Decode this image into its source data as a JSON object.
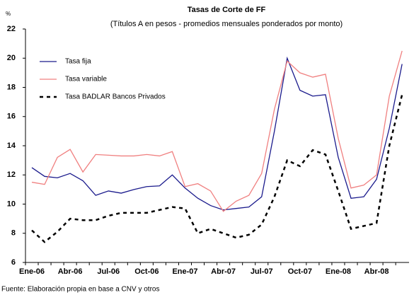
{
  "chart_data": {
    "type": "line",
    "title": "Tasas de Corte de FF",
    "subtitle": "(Títulos A en pesos - promedios mensuales ponderados por monto)",
    "y_unit": "%",
    "source": "Fuente: Elaboración propia en base a CNV y otros",
    "categories": [
      "Ene-06",
      null,
      null,
      "Abr-06",
      null,
      null,
      "Jul-06",
      null,
      null,
      "Oct-06",
      null,
      null,
      "Ene-07",
      null,
      null,
      "Abr-07",
      null,
      null,
      "Jul-07",
      null,
      null,
      "Oct-07",
      null,
      null,
      "Ene-08",
      null,
      null,
      "Abr-08",
      null,
      null
    ],
    "series": [
      {
        "name": "Tasa fija",
        "color": "#1a1a8c",
        "dash": false,
        "values": [
          12.5,
          11.9,
          11.8,
          12.1,
          11.6,
          10.6,
          10.9,
          10.75,
          11.0,
          11.2,
          11.25,
          12.0,
          11.1,
          10.4,
          9.9,
          9.6,
          9.7,
          9.8,
          10.5,
          15.0,
          20.0,
          17.8,
          17.4,
          17.5,
          13.2,
          10.4,
          10.5,
          11.7,
          15.2,
          19.6
        ]
      },
      {
        "name": "Tasa variable",
        "color": "#f08080",
        "dash": false,
        "values": [
          11.5,
          11.35,
          13.2,
          13.75,
          12.2,
          13.4,
          13.35,
          13.3,
          13.3,
          13.4,
          13.3,
          13.6,
          11.2,
          11.4,
          10.9,
          9.5,
          10.2,
          10.6,
          12.1,
          16.5,
          19.8,
          19.0,
          18.7,
          18.9,
          14.5,
          11.1,
          11.3,
          12.0,
          17.4,
          20.5
        ]
      },
      {
        "name": "Tasa BADLAR Bancos Privados",
        "color": "#000000",
        "dash": true,
        "values": [
          8.2,
          7.4,
          8.1,
          9.0,
          8.9,
          8.9,
          9.2,
          9.4,
          9.4,
          9.4,
          9.6,
          9.8,
          9.7,
          8.0,
          8.3,
          8.0,
          7.7,
          7.9,
          8.6,
          10.5,
          13.0,
          12.6,
          13.7,
          13.4,
          10.9,
          8.3,
          8.5,
          8.7,
          14.0,
          17.5
        ]
      }
    ],
    "ylim": [
      6,
      22
    ],
    "yticks": [
      6,
      8,
      10,
      12,
      14,
      16,
      18,
      20,
      22
    ]
  }
}
